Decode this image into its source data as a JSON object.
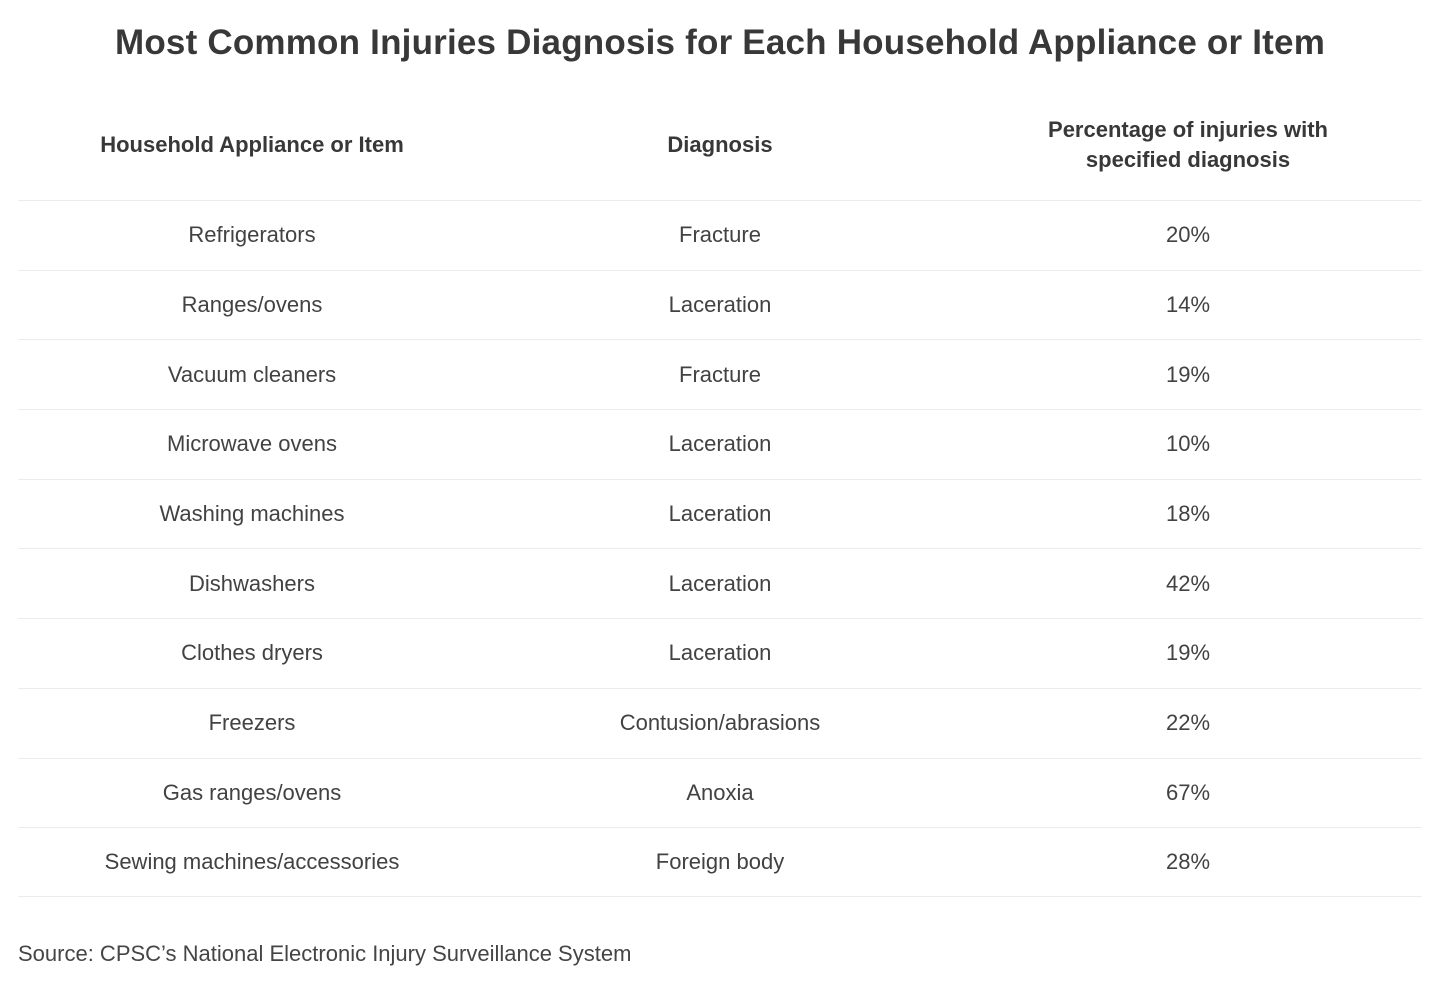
{
  "chart_data": {
    "type": "table",
    "title": "Most Common Injuries Diagnosis for Each Household Appliance or Item",
    "columns": [
      "Household Appliance or Item",
      "Diagnosis",
      "Percentage of injuries with specified diagnosis"
    ],
    "rows": [
      {
        "appliance": "Refrigerators",
        "diagnosis": "Fracture",
        "percentage": "20%",
        "percentage_value": 20
      },
      {
        "appliance": "Ranges/ovens",
        "diagnosis": "Laceration",
        "percentage": "14%",
        "percentage_value": 14
      },
      {
        "appliance": "Vacuum cleaners",
        "diagnosis": "Fracture",
        "percentage": "19%",
        "percentage_value": 19
      },
      {
        "appliance": "Microwave ovens",
        "diagnosis": "Laceration",
        "percentage": "10%",
        "percentage_value": 10
      },
      {
        "appliance": "Washing machines",
        "diagnosis": "Laceration",
        "percentage": "18%",
        "percentage_value": 18
      },
      {
        "appliance": "Dishwashers",
        "diagnosis": "Laceration",
        "percentage": "42%",
        "percentage_value": 42
      },
      {
        "appliance": "Clothes dryers",
        "diagnosis": "Laceration",
        "percentage": "19%",
        "percentage_value": 19
      },
      {
        "appliance": "Freezers",
        "diagnosis": "Contusion/abrasions",
        "percentage": "22%",
        "percentage_value": 22
      },
      {
        "appliance": "Gas ranges/ovens",
        "diagnosis": "Anoxia",
        "percentage": "67%",
        "percentage_value": 67
      },
      {
        "appliance": "Sewing machines/accessories",
        "diagnosis": "Foreign body",
        "percentage": "28%",
        "percentage_value": 28
      }
    ],
    "source": "Source: CPSC’s National Electronic Injury Surveillance System",
    "layout": {
      "grid": "horizontal-row-dividers-only",
      "legend": "none"
    }
  },
  "colors": {
    "background": "#ffffff",
    "title_text": "#383838",
    "header_text": "#383838",
    "cell_text": "#424242",
    "source_text": "#454545",
    "row_divider": "#ececec"
  }
}
